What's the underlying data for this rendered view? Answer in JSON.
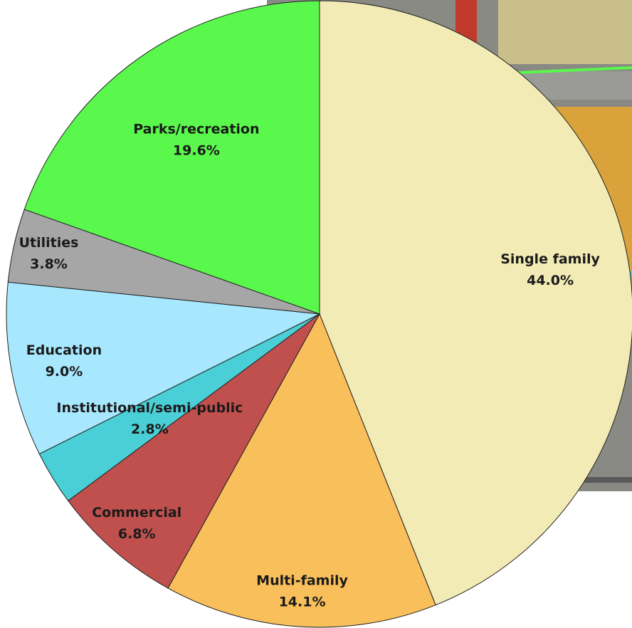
{
  "chart_data": {
    "type": "pie",
    "categories": [
      "Single family",
      "Multi-family",
      "Commercial",
      "Institutional/semi-public",
      "Education",
      "Utilities",
      "Parks/recreation"
    ],
    "values": [
      44.0,
      14.1,
      6.8,
      2.8,
      9.0,
      3.8,
      19.6
    ],
    "value_labels": [
      "44.0%",
      "14.1%",
      "6.8%",
      "2.8%",
      "9.0%",
      "3.8%",
      "19.6%"
    ],
    "colors": [
      "#f3ebb5",
      "#f9bf5b",
      "#c0504d",
      "#4bcfd6",
      "#a8e8ff",
      "#a6a6a6",
      "#5af74c"
    ]
  }
}
